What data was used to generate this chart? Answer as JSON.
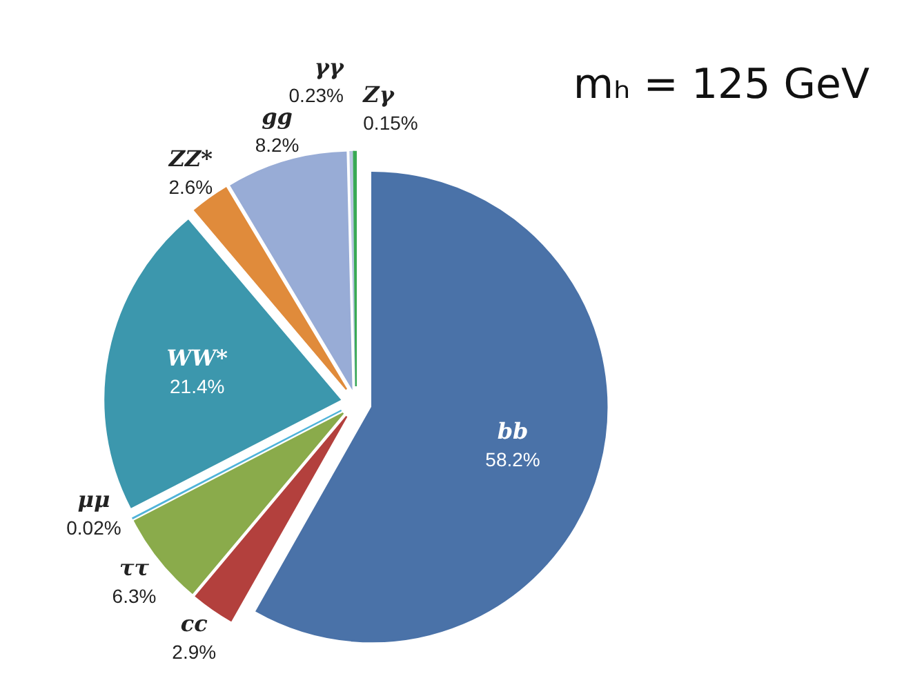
{
  "chart_data": {
    "type": "pie",
    "categories": [
      "bb",
      "cc",
      "ττ",
      "μμ",
      "WW*",
      "ZZ*",
      "gg",
      "γγ",
      "Zγ"
    ],
    "values": [
      58.2,
      2.9,
      6.3,
      0.02,
      21.4,
      2.6,
      8.2,
      0.23,
      0.15
    ],
    "value_labels": [
      "58.2%",
      "2.9%",
      "6.3%",
      "0.02%",
      "21.4%",
      "2.6%",
      "8.2%",
      "0.23%",
      "0.15%"
    ],
    "colors": [
      "#4a72a8",
      "#b3403d",
      "#8aab4b",
      "#4fb3d9",
      "#3c97ad",
      "#e08b3b",
      "#98acd6",
      "#b9c6e2",
      "#3aaa55"
    ],
    "annotations": [
      "mₕ = 125 GeV"
    ]
  }
}
